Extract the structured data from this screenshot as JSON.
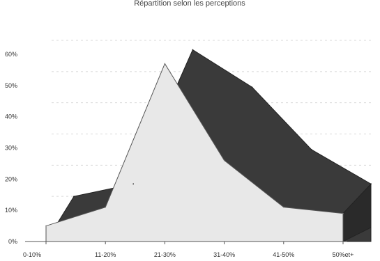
{
  "chart_data": {
    "type": "area",
    "title": "Répartition selon les perceptions",
    "categories": [
      "0-10%",
      "11-20%",
      "21-30%",
      "31-40%",
      "41-50%",
      "50%et+"
    ],
    "y_ticks": [
      "0%",
      "10%",
      "20%",
      "30%",
      "40%",
      "50%",
      "60%"
    ],
    "ylim": [
      0,
      60
    ],
    "grid": true,
    "series": [
      {
        "values": [
          10,
          14,
          57,
          45,
          25,
          14
        ],
        "color": "#3a3a3a"
      },
      {
        "values": [
          5,
          11,
          57,
          26,
          11,
          9
        ],
        "color": "#e8e8e8"
      }
    ]
  }
}
